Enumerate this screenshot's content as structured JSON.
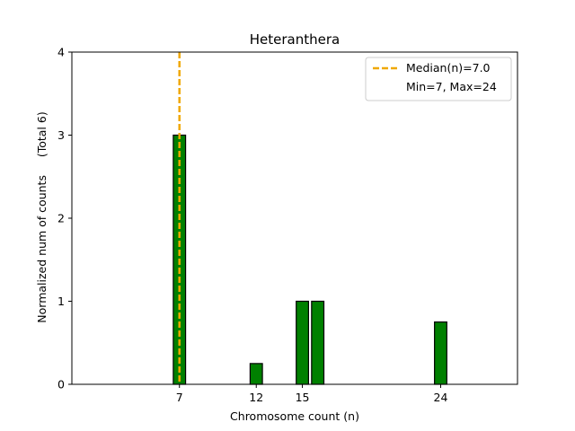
{
  "chart_data": {
    "type": "bar",
    "title": "Heteranthera",
    "xlabel": "Chromosome count (n)",
    "ylabel": "Normalized num of counts     (Total 6)",
    "x_ticks": [
      7,
      12,
      15,
      24
    ],
    "y_ticks": [
      0,
      1,
      2,
      3,
      4
    ],
    "xlim": [
      0,
      29
    ],
    "ylim": [
      0,
      4
    ],
    "bar_width": 0.8,
    "bars": [
      {
        "x": 7,
        "value": 3
      },
      {
        "x": 12,
        "value": 0.25
      },
      {
        "x": 15,
        "value": 1
      },
      {
        "x": 16,
        "value": 1
      },
      {
        "x": 24,
        "value": 0.75
      }
    ],
    "median_line": {
      "x": 7.0,
      "label": "Median(n)=7.0"
    },
    "range_label": "Min=7, Max=24",
    "legend_position": "top-right",
    "grid": false,
    "colors": {
      "bar_fill": "#008000",
      "bar_edge": "#000000",
      "median": "#f0a800"
    }
  }
}
